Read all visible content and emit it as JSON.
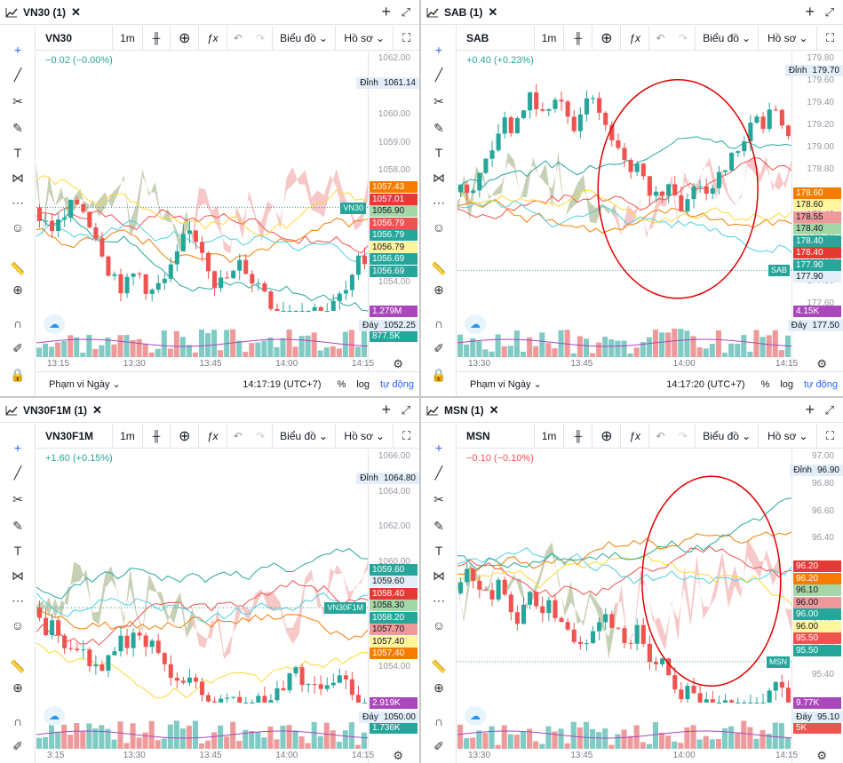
{
  "toolbar": {
    "interval": "1m",
    "chart_menu": "Biểu đồ",
    "profile_menu": "Hồ sơ"
  },
  "footer": {
    "range": "Phạm vi Ngày",
    "log": "log",
    "pct": "%",
    "auto": "tự động"
  },
  "colors": {
    "up": "#26a69a",
    "down": "#ef5350",
    "kumo_bull": "#a5d6a7",
    "kumo_bear": "#ef9a9a",
    "highlight": "#e00000"
  },
  "panes": [
    {
      "title": "VN30 (1)",
      "symbol": "VN30",
      "change": "−0.02 (−0.00%)",
      "change_color": "#26a69a",
      "price_ticks": [
        "1062.00",
        "1061.00",
        "1060.00",
        "1059.00",
        "1058.00",
        "1057.00",
        "1056.00",
        "1055.00",
        "1054.00",
        "1053.00"
      ],
      "peak": "1061.14",
      "trough": "1052.25",
      "peak_label": "Đỉnh",
      "trough_label": "Đáy",
      "price_labels": [
        {
          "text": "1057.43",
          "color": "#f57c00"
        },
        {
          "text": "1057.01",
          "color": "#e53935"
        },
        {
          "text": "1056.90",
          "color": "#a5d6a7",
          "dark": true
        },
        {
          "text": "1056.79",
          "color": "#ef5350"
        },
        {
          "text": "1056.79",
          "color": "#26a69a"
        },
        {
          "text": "1056.79",
          "color": "#fff59d",
          "dark": true
        },
        {
          "text": "1056.69",
          "color": "#26a69a"
        },
        {
          "text": "1056.69",
          "color": "#26a69a"
        }
      ],
      "vol_labels": [
        {
          "text": "1.279M",
          "color": "#ab47bc"
        },
        {
          "text": "877.5K",
          "color": "#26a69a"
        }
      ],
      "times": [
        "13:15",
        "13:30",
        "13:45",
        "14:00",
        "14:15"
      ],
      "clock": "14:17:19 (UTC+7)"
    },
    {
      "title": "SAB (1)",
      "symbol": "SAB",
      "change": "+0.40 (+0.23%)",
      "change_color": "#26a69a",
      "price_ticks": [
        "179.80",
        "179.60",
        "179.40",
        "179.20",
        "179.00",
        "178.80",
        "178.60",
        "178.40",
        "178.20",
        "178.00",
        "177.80",
        "177.60"
      ],
      "peak": "179.70",
      "trough": "177.50",
      "peak_label": "Đỉnh",
      "trough_label": "Đáy",
      "price_labels": [
        {
          "text": "178.60",
          "color": "#f57c00"
        },
        {
          "text": "178.60",
          "color": "#fff59d",
          "dark": true
        },
        {
          "text": "178.55",
          "color": "#ef9a9a",
          "dark": true
        },
        {
          "text": "178.40",
          "color": "#a5d6a7",
          "dark": true
        },
        {
          "text": "178.40",
          "color": "#26a69a"
        },
        {
          "text": "178.40",
          "color": "#e53935"
        },
        {
          "text": "177.90",
          "color": "#26a69a"
        },
        {
          "text": "177.90",
          "color": "#e3eef9",
          "dark": true
        }
      ],
      "vol_labels": [
        {
          "text": "4.15K",
          "color": "#ab47bc"
        }
      ],
      "times": [
        "13:30",
        "13:45",
        "14:00",
        "14:15"
      ],
      "clock": "14:17:20 (UTC+7)"
    },
    {
      "title": "VN30F1M (1)",
      "symbol": "VN30F1M",
      "change": "+1.60 (+0.15%)",
      "change_color": "#26a69a",
      "price_ticks": [
        "1066.00",
        "1064.00",
        "1062.00",
        "1060.00",
        "1058.00",
        "1056.00",
        "1054.00",
        "1052.00"
      ],
      "peak": "1064.80",
      "trough": "1050.00",
      "peak_label": "Đỉnh",
      "trough_label": "Đáy",
      "price_labels": [
        {
          "text": "1059.60",
          "color": "#26a69a"
        },
        {
          "text": "1059.60",
          "color": "#e3eef9",
          "dark": true
        },
        {
          "text": "1058.40",
          "color": "#e53935"
        },
        {
          "text": "1058.30",
          "color": "#a5d6a7",
          "dark": true
        },
        {
          "text": "1058.20",
          "color": "#26a69a"
        },
        {
          "text": "1057.70",
          "color": "#ef9a9a",
          "dark": true
        },
        {
          "text": "1057.40",
          "color": "#fff59d",
          "dark": true
        },
        {
          "text": "1057.40",
          "color": "#f57c00"
        }
      ],
      "vol_labels": [
        {
          "text": "2.919K",
          "color": "#ab47bc"
        },
        {
          "text": "1.736K",
          "color": "#26a69a"
        }
      ],
      "times": [
        "3:15",
        "13:30",
        "13:45",
        "14:00",
        "14:15"
      ],
      "clock": ""
    },
    {
      "title": "MSN (1)",
      "symbol": "MSN",
      "change": "−0.10 (−0.10%)",
      "change_color": "#ef5350",
      "price_ticks": [
        "97.00",
        "96.80",
        "96.60",
        "96.40",
        "96.20",
        "96.00",
        "95.80",
        "95.60",
        "95.40",
        "95.20"
      ],
      "peak": "96.90",
      "trough": "95.10",
      "peak_label": "Đỉnh",
      "trough_label": "Đáy",
      "price_labels": [
        {
          "text": "96.20",
          "color": "#e53935"
        },
        {
          "text": "96.20",
          "color": "#f57c00"
        },
        {
          "text": "96.10",
          "color": "#a5d6a7",
          "dark": true
        },
        {
          "text": "96.00",
          "color": "#ef9a9a",
          "dark": true
        },
        {
          "text": "96.00",
          "color": "#26a69a"
        },
        {
          "text": "96.00",
          "color": "#fff59d",
          "dark": true
        },
        {
          "text": "95.50",
          "color": "#ef5350"
        },
        {
          "text": "95.50",
          "color": "#26a69a"
        }
      ],
      "vol_labels": [
        {
          "text": "9.77K",
          "color": "#ab47bc"
        },
        {
          "text": "5K",
          "color": "#ef5350"
        }
      ],
      "times": [
        "13:30",
        "13:45",
        "14:00",
        "14:15"
      ],
      "clock": ""
    }
  ]
}
